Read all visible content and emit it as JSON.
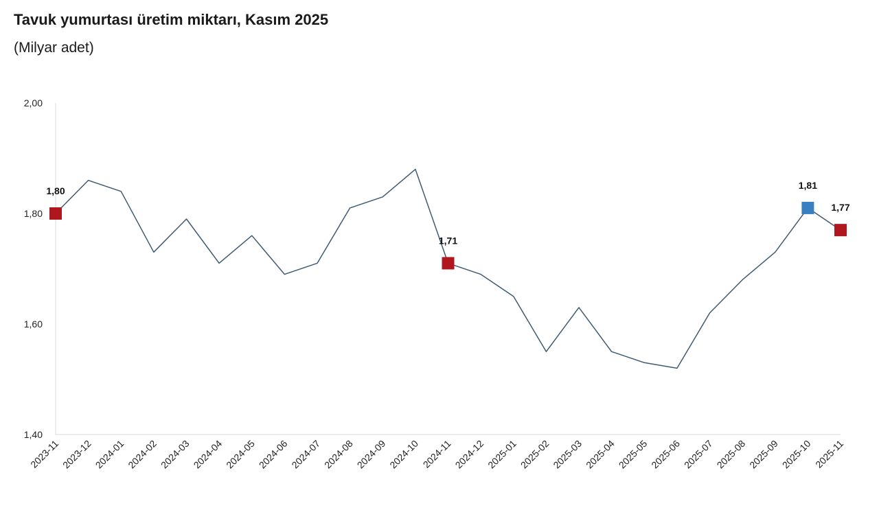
{
  "header": {
    "title": "Tavuk yumurtası üretim miktarı, Kasım 2025",
    "subtitle": "(Milyar adet)"
  },
  "chart_data": {
    "type": "line",
    "title": "Tavuk yumurtası üretim miktarı, Kasım 2025",
    "subtitle": "(Milyar adet)",
    "xlabel": "",
    "ylabel": "",
    "ylim": [
      1.4,
      2.0
    ],
    "yticks": [
      "1,40",
      "1,60",
      "1,80",
      "2,00"
    ],
    "grid": false,
    "x": [
      "2023-11",
      "2023-12",
      "2024-01",
      "2024-02",
      "2024-03",
      "2024-04",
      "2024-05",
      "2024-06",
      "2024-07",
      "2024-08",
      "2024-09",
      "2024-10",
      "2024-11",
      "2024-12",
      "2025-01",
      "2025-02",
      "2025-03",
      "2025-04",
      "2025-05",
      "2025-06",
      "2025-07",
      "2025-08",
      "2025-09",
      "2025-10",
      "2025-11"
    ],
    "series": [
      {
        "values": [
          1.8,
          1.86,
          1.84,
          1.73,
          1.79,
          1.71,
          1.76,
          1.69,
          1.71,
          1.81,
          1.83,
          1.88,
          1.71,
          1.69,
          1.65,
          1.55,
          1.63,
          1.55,
          1.53,
          1.52,
          1.62,
          1.68,
          1.73,
          1.81,
          1.77
        ],
        "color": "#3d5a73"
      }
    ],
    "highlights": [
      {
        "index": 0,
        "label": "1,80",
        "color": "#b0161e"
      },
      {
        "index": 12,
        "label": "1,71",
        "color": "#b0161e"
      },
      {
        "index": 23,
        "label": "1,81",
        "color": "#3a7fbf"
      },
      {
        "index": 24,
        "label": "1,77",
        "color": "#b0161e"
      }
    ]
  }
}
